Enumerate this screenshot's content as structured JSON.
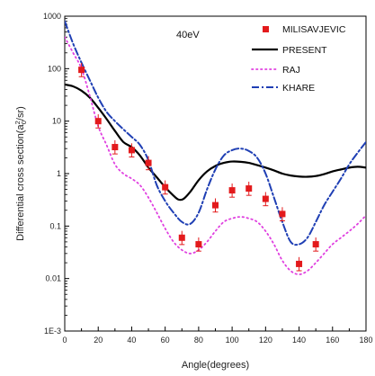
{
  "chart_data": {
    "type": "scatter",
    "annotation": "40eV",
    "xlabel": "Angle(degrees)",
    "ylabel_prefix": "Differential cross section(a",
    "ylabel_sub": "0",
    "ylabel_sup": "2",
    "ylabel_suffix": "/sr)",
    "xlim": [
      0,
      180
    ],
    "ylim": [
      0.001,
      1000
    ],
    "yscale": "log",
    "x_ticks": [
      0,
      20,
      40,
      60,
      80,
      100,
      120,
      140,
      160,
      180
    ],
    "x_tick_labels": [
      "0",
      "20",
      "40",
      "60",
      "80",
      "100",
      "120",
      "140",
      "160",
      "180"
    ],
    "y_ticks": [
      0.001,
      0.01,
      0.1,
      1,
      10,
      100,
      1000
    ],
    "y_tick_labels": [
      "1E-3",
      "0.01",
      "0.1",
      "1",
      "10",
      "100",
      "1000"
    ],
    "grid": false,
    "legend_position": "top-right",
    "series": [
      {
        "name": "MILISAVJEVIC",
        "kind": "markers",
        "color": "#e31a1c",
        "x": [
          10,
          20,
          30,
          40,
          50,
          60,
          70,
          80,
          90,
          100,
          110,
          120,
          130,
          140,
          150
        ],
        "y": [
          95,
          10,
          3.2,
          2.8,
          1.6,
          0.55,
          0.06,
          0.045,
          0.25,
          0.48,
          0.52,
          0.33,
          0.17,
          0.019,
          0.045
        ]
      },
      {
        "name": "PRESENT",
        "kind": "line",
        "color": "#000000",
        "dash": "solid",
        "x": [
          0,
          5,
          10,
          15,
          20,
          25,
          30,
          35,
          40,
          45,
          50,
          55,
          60,
          65,
          68,
          71,
          75,
          80,
          85,
          90,
          95,
          100,
          105,
          110,
          115,
          120,
          125,
          130,
          135,
          140,
          145,
          150,
          155,
          160,
          165,
          170,
          175,
          180
        ],
        "y": [
          50,
          46,
          38,
          28,
          18,
          11,
          6.5,
          4,
          3.2,
          2.2,
          1.3,
          0.85,
          0.55,
          0.38,
          0.32,
          0.33,
          0.45,
          0.75,
          1.1,
          1.4,
          1.6,
          1.7,
          1.68,
          1.6,
          1.45,
          1.3,
          1.15,
          1.0,
          0.92,
          0.88,
          0.87,
          0.9,
          0.98,
          1.1,
          1.2,
          1.3,
          1.35,
          1.3
        ]
      },
      {
        "name": "RAJ",
        "kind": "line",
        "color": "#e040e0",
        "dash": "dotted",
        "x": [
          0,
          5,
          10,
          15,
          20,
          25,
          30,
          35,
          40,
          45,
          50,
          55,
          60,
          65,
          70,
          75,
          80,
          85,
          90,
          95,
          100,
          105,
          110,
          115,
          120,
          125,
          130,
          135,
          140,
          145,
          150,
          155,
          160,
          165,
          170,
          175,
          180
        ],
        "y": [
          400,
          200,
          100,
          30,
          8,
          3.5,
          1.5,
          1.0,
          0.8,
          0.6,
          0.35,
          0.18,
          0.09,
          0.05,
          0.035,
          0.03,
          0.035,
          0.05,
          0.08,
          0.12,
          0.14,
          0.15,
          0.14,
          0.12,
          0.08,
          0.045,
          0.022,
          0.014,
          0.012,
          0.014,
          0.02,
          0.03,
          0.045,
          0.06,
          0.08,
          0.11,
          0.16
        ]
      },
      {
        "name": "KHARE",
        "kind": "line",
        "color": "#1f3fb4",
        "dash": "dashdot",
        "x": [
          0,
          5,
          10,
          15,
          20,
          25,
          30,
          35,
          40,
          45,
          50,
          55,
          60,
          65,
          70,
          75,
          80,
          85,
          90,
          95,
          100,
          105,
          110,
          115,
          120,
          125,
          130,
          135,
          140,
          145,
          150,
          155,
          160,
          165,
          170,
          175,
          180
        ],
        "y": [
          800,
          300,
          130,
          60,
          28,
          15,
          10,
          7,
          5,
          3.5,
          1.8,
          0.6,
          0.3,
          0.18,
          0.12,
          0.11,
          0.18,
          0.5,
          1.2,
          2.2,
          2.8,
          3.0,
          2.7,
          2.0,
          1.0,
          0.35,
          0.12,
          0.05,
          0.045,
          0.06,
          0.12,
          0.25,
          0.45,
          0.8,
          1.5,
          2.5,
          4.0
        ]
      }
    ]
  }
}
